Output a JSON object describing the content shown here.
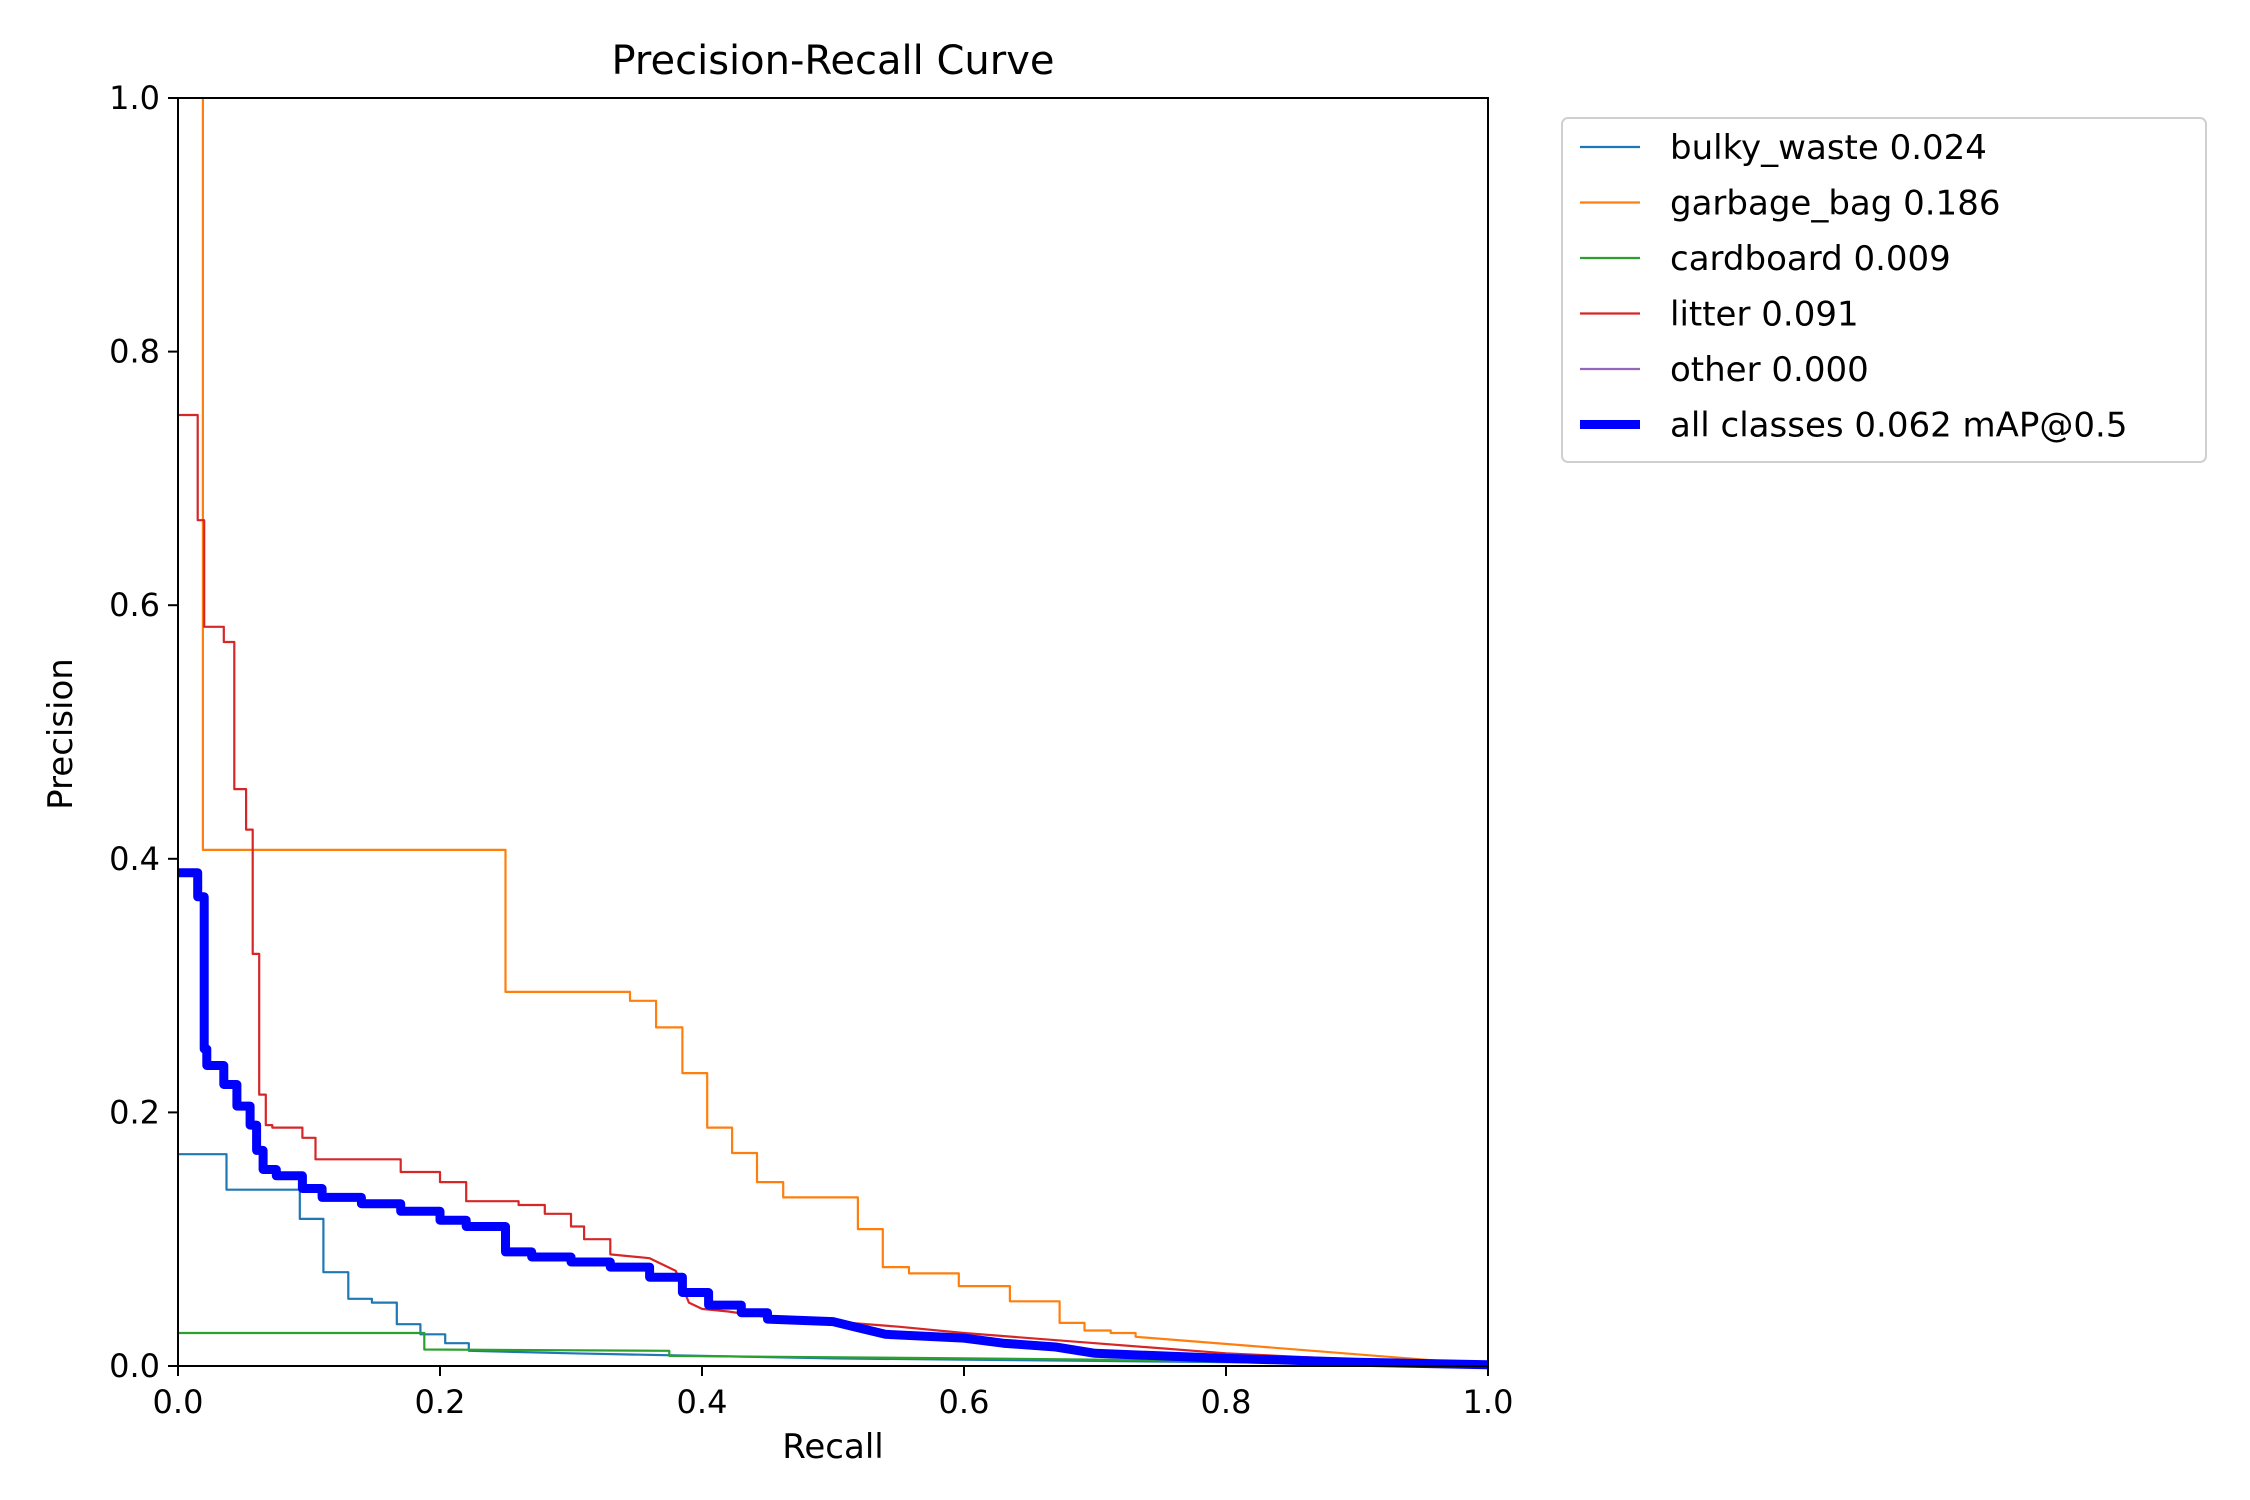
{
  "chart_data": {
    "type": "line",
    "title": "Precision-Recall Curve",
    "xlabel": "Recall",
    "ylabel": "Precision",
    "xlim": [
      0,
      1
    ],
    "ylim": [
      0,
      1
    ],
    "xticks": [
      "0.0",
      "0.2",
      "0.4",
      "0.6",
      "0.8",
      "1.0"
    ],
    "yticks": [
      "0.0",
      "0.2",
      "0.4",
      "0.6",
      "0.8",
      "1.0"
    ],
    "grid": false,
    "legend_position": "outside-top-right",
    "series": [
      {
        "name": "bulky_waste 0.024",
        "color": "#1f77b4",
        "emphasis": false,
        "points": [
          [
            0,
            0.167
          ],
          [
            0.037,
            0.167
          ],
          [
            0.037,
            0.139
          ],
          [
            0.093,
            0.139
          ],
          [
            0.093,
            0.116
          ],
          [
            0.111,
            0.116
          ],
          [
            0.111,
            0.074
          ],
          [
            0.13,
            0.074
          ],
          [
            0.13,
            0.053
          ],
          [
            0.148,
            0.053
          ],
          [
            0.148,
            0.05
          ],
          [
            0.167,
            0.05
          ],
          [
            0.167,
            0.033
          ],
          [
            0.185,
            0.033
          ],
          [
            0.185,
            0.025
          ],
          [
            0.204,
            0.025
          ],
          [
            0.204,
            0.018
          ],
          [
            0.222,
            0.018
          ],
          [
            0.222,
            0.012
          ],
          [
            0.3,
            0.01
          ],
          [
            0.4,
            0.008
          ],
          [
            0.5,
            0.006
          ],
          [
            0.6,
            0.005
          ],
          [
            0.7,
            0.004
          ],
          [
            0.8,
            0.003
          ],
          [
            0.9,
            0.002
          ],
          [
            1.0,
            0.001
          ]
        ]
      },
      {
        "name": "garbage_bag 0.186",
        "color": "#ff7f0e",
        "emphasis": false,
        "points": [
          [
            0.019,
            1.0
          ],
          [
            0.019,
            0.407
          ],
          [
            0.25,
            0.407
          ],
          [
            0.25,
            0.295
          ],
          [
            0.345,
            0.295
          ],
          [
            0.345,
            0.288
          ],
          [
            0.365,
            0.288
          ],
          [
            0.365,
            0.267
          ],
          [
            0.385,
            0.267
          ],
          [
            0.385,
            0.231
          ],
          [
            0.404,
            0.231
          ],
          [
            0.404,
            0.188
          ],
          [
            0.423,
            0.188
          ],
          [
            0.423,
            0.168
          ],
          [
            0.442,
            0.168
          ],
          [
            0.442,
            0.145
          ],
          [
            0.462,
            0.145
          ],
          [
            0.462,
            0.133
          ],
          [
            0.519,
            0.133
          ],
          [
            0.519,
            0.108
          ],
          [
            0.538,
            0.108
          ],
          [
            0.538,
            0.078
          ],
          [
            0.558,
            0.078
          ],
          [
            0.558,
            0.073
          ],
          [
            0.596,
            0.073
          ],
          [
            0.596,
            0.063
          ],
          [
            0.635,
            0.063
          ],
          [
            0.635,
            0.051
          ],
          [
            0.673,
            0.051
          ],
          [
            0.673,
            0.034
          ],
          [
            0.692,
            0.034
          ],
          [
            0.692,
            0.028
          ],
          [
            0.712,
            0.028
          ],
          [
            0.712,
            0.026
          ],
          [
            0.731,
            0.026
          ],
          [
            0.731,
            0.023
          ],
          [
            1.0,
            0.001
          ]
        ]
      },
      {
        "name": "cardboard 0.009",
        "color": "#2ca02c",
        "emphasis": false,
        "points": [
          [
            0,
            0.026
          ],
          [
            0.188,
            0.026
          ],
          [
            0.188,
            0.013
          ],
          [
            0.375,
            0.012
          ],
          [
            0.375,
            0.008
          ],
          [
            0.6,
            0.006
          ],
          [
            0.8,
            0.004
          ],
          [
            1.0,
            0.001
          ]
        ]
      },
      {
        "name": "litter 0.091",
        "color": "#d62728",
        "emphasis": false,
        "points": [
          [
            0,
            0.75
          ],
          [
            0.015,
            0.75
          ],
          [
            0.015,
            0.667
          ],
          [
            0.02,
            0.667
          ],
          [
            0.02,
            0.583
          ],
          [
            0.035,
            0.583
          ],
          [
            0.035,
            0.571
          ],
          [
            0.043,
            0.571
          ],
          [
            0.043,
            0.455
          ],
          [
            0.052,
            0.455
          ],
          [
            0.052,
            0.423
          ],
          [
            0.057,
            0.423
          ],
          [
            0.057,
            0.325
          ],
          [
            0.062,
            0.325
          ],
          [
            0.062,
            0.214
          ],
          [
            0.067,
            0.214
          ],
          [
            0.067,
            0.19
          ],
          [
            0.072,
            0.19
          ],
          [
            0.072,
            0.188
          ],
          [
            0.095,
            0.188
          ],
          [
            0.095,
            0.18
          ],
          [
            0.105,
            0.18
          ],
          [
            0.105,
            0.163
          ],
          [
            0.17,
            0.163
          ],
          [
            0.17,
            0.153
          ],
          [
            0.2,
            0.153
          ],
          [
            0.2,
            0.145
          ],
          [
            0.22,
            0.145
          ],
          [
            0.22,
            0.13
          ],
          [
            0.26,
            0.13
          ],
          [
            0.26,
            0.127
          ],
          [
            0.28,
            0.127
          ],
          [
            0.28,
            0.12
          ],
          [
            0.3,
            0.12
          ],
          [
            0.3,
            0.11
          ],
          [
            0.31,
            0.11
          ],
          [
            0.31,
            0.1
          ],
          [
            0.33,
            0.1
          ],
          [
            0.33,
            0.088
          ],
          [
            0.36,
            0.085
          ],
          [
            0.38,
            0.075
          ],
          [
            0.39,
            0.05
          ],
          [
            0.4,
            0.045
          ],
          [
            0.42,
            0.043
          ],
          [
            0.44,
            0.04
          ],
          [
            0.46,
            0.037
          ],
          [
            0.5,
            0.035
          ],
          [
            0.55,
            0.031
          ],
          [
            0.6,
            0.026
          ],
          [
            0.7,
            0.018
          ],
          [
            0.8,
            0.01
          ],
          [
            0.9,
            0.005
          ],
          [
            1.0,
            0.001
          ]
        ]
      },
      {
        "name": "other 0.000",
        "color": "#9467bd",
        "emphasis": false,
        "points": []
      },
      {
        "name": "all classes 0.062 mAP@0.5",
        "color": "#0000ff",
        "emphasis": true,
        "points": [
          [
            0,
            0.389
          ],
          [
            0.015,
            0.389
          ],
          [
            0.015,
            0.37
          ],
          [
            0.02,
            0.37
          ],
          [
            0.02,
            0.25
          ],
          [
            0.022,
            0.25
          ],
          [
            0.022,
            0.237
          ],
          [
            0.035,
            0.237
          ],
          [
            0.035,
            0.222
          ],
          [
            0.045,
            0.222
          ],
          [
            0.045,
            0.205
          ],
          [
            0.055,
            0.205
          ],
          [
            0.055,
            0.19
          ],
          [
            0.06,
            0.19
          ],
          [
            0.06,
            0.17
          ],
          [
            0.065,
            0.17
          ],
          [
            0.065,
            0.155
          ],
          [
            0.075,
            0.155
          ],
          [
            0.075,
            0.15
          ],
          [
            0.095,
            0.15
          ],
          [
            0.095,
            0.14
          ],
          [
            0.11,
            0.14
          ],
          [
            0.11,
            0.133
          ],
          [
            0.14,
            0.133
          ],
          [
            0.14,
            0.128
          ],
          [
            0.17,
            0.128
          ],
          [
            0.17,
            0.122
          ],
          [
            0.2,
            0.122
          ],
          [
            0.2,
            0.115
          ],
          [
            0.22,
            0.115
          ],
          [
            0.22,
            0.11
          ],
          [
            0.25,
            0.11
          ],
          [
            0.25,
            0.09
          ],
          [
            0.27,
            0.09
          ],
          [
            0.27,
            0.086
          ],
          [
            0.3,
            0.086
          ],
          [
            0.3,
            0.082
          ],
          [
            0.33,
            0.082
          ],
          [
            0.33,
            0.078
          ],
          [
            0.36,
            0.078
          ],
          [
            0.36,
            0.07
          ],
          [
            0.385,
            0.07
          ],
          [
            0.385,
            0.058
          ],
          [
            0.405,
            0.058
          ],
          [
            0.405,
            0.048
          ],
          [
            0.43,
            0.048
          ],
          [
            0.43,
            0.042
          ],
          [
            0.45,
            0.042
          ],
          [
            0.45,
            0.037
          ],
          [
            0.5,
            0.035
          ],
          [
            0.52,
            0.03
          ],
          [
            0.54,
            0.025
          ],
          [
            0.6,
            0.022
          ],
          [
            0.63,
            0.018
          ],
          [
            0.67,
            0.015
          ],
          [
            0.7,
            0.01
          ],
          [
            0.8,
            0.006
          ],
          [
            0.9,
            0.003
          ],
          [
            1.0,
            0.001
          ]
        ]
      }
    ]
  }
}
